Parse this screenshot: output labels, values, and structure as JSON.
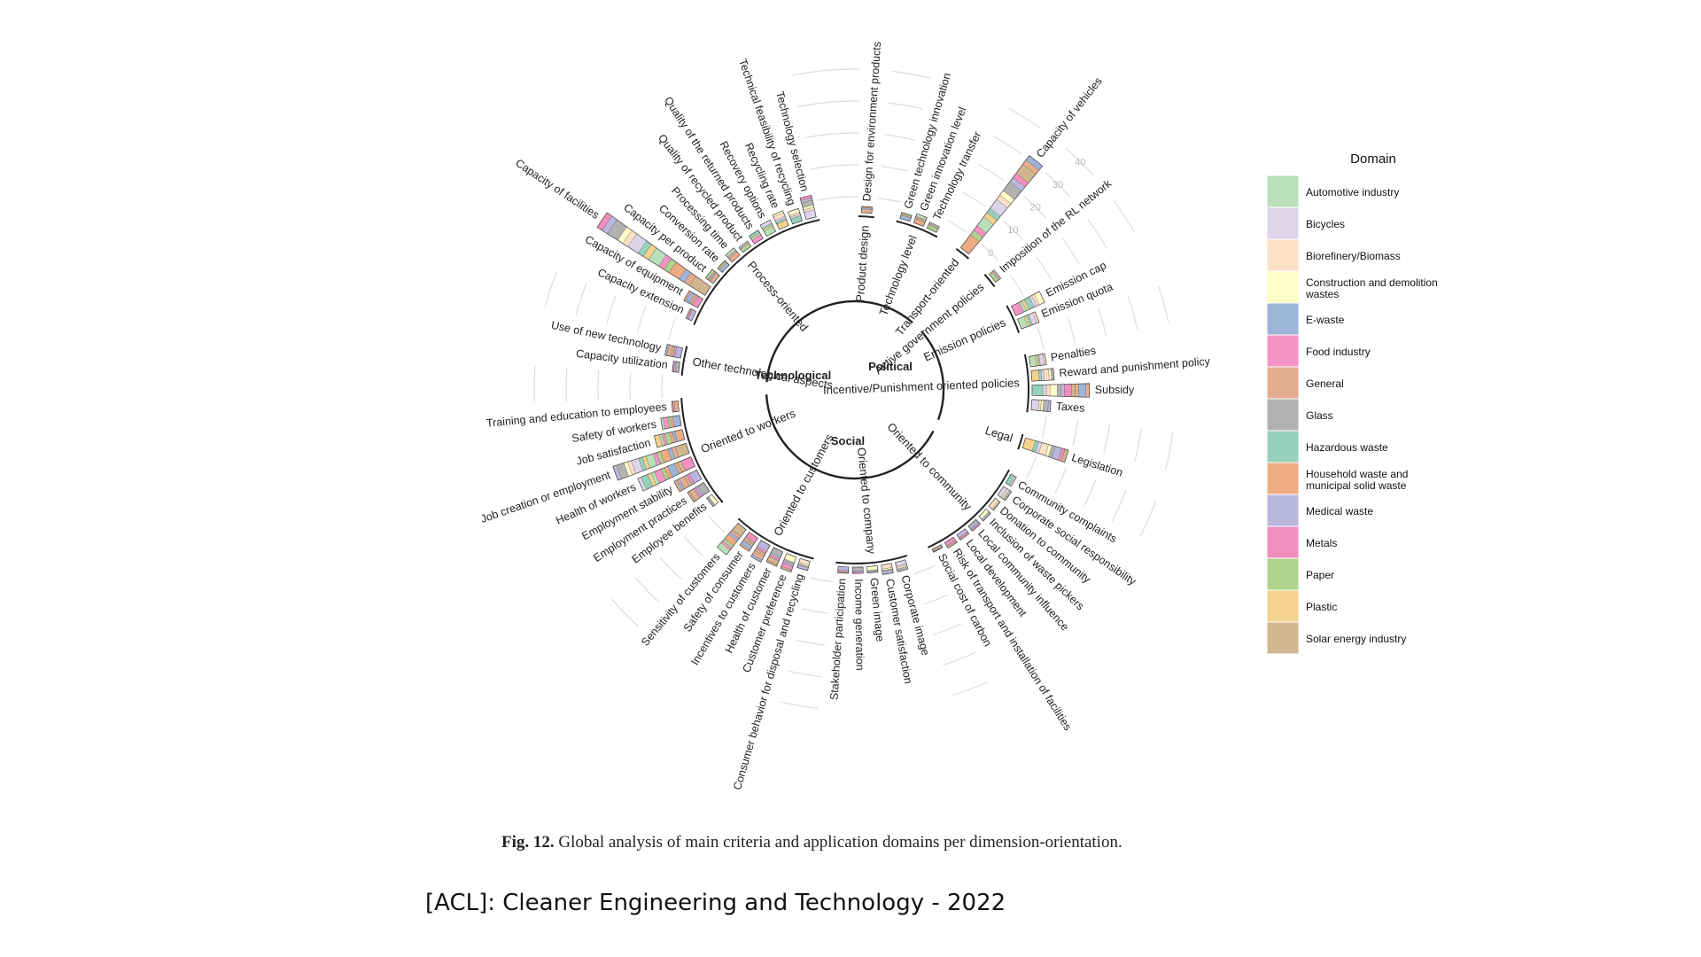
{
  "caption": {
    "label": "Fig. 12.",
    "text": "Global analysis of main criteria and application domains per dimension-orientation."
  },
  "footer": "[ACL]: Cleaner Engineering and Technology - 2022",
  "chart_data": {
    "type": "circular stacked bar",
    "axis_ticks": [
      0,
      10,
      20,
      30,
      40
    ],
    "legend": {
      "title": "Domain",
      "items": [
        {
          "name": "Automotive industry",
          "color": "#b9e0b9"
        },
        {
          "name": "Bicycles",
          "color": "#dcd5ea"
        },
        {
          "name": "Biorefinery/Biomass",
          "color": "#fde0c6"
        },
        {
          "name": "Construction and demolition wastes",
          "color": "#fefcc8"
        },
        {
          "name": "E-waste",
          "color": "#9db5d9"
        },
        {
          "name": "Food industry",
          "color": "#f595c5"
        },
        {
          "name": "General",
          "color": "#e3ac8f"
        },
        {
          "name": "Glass",
          "color": "#b2b2b2"
        },
        {
          "name": "Hazardous waste",
          "color": "#96d1bc"
        },
        {
          "name": "Household waste and municipal solid waste",
          "color": "#efab84"
        },
        {
          "name": "Medical waste",
          "color": "#bab7dd"
        },
        {
          "name": "Metals",
          "color": "#f08fc0"
        },
        {
          "name": "Paper",
          "color": "#b0d48e"
        },
        {
          "name": "Plastic",
          "color": "#f4d28e"
        },
        {
          "name": "Solar energy industry",
          "color": "#d2b690"
        }
      ]
    },
    "dimensions": [
      "Technological",
      "Political",
      "Social"
    ],
    "groups": [
      {
        "name": "Product design",
        "dimension": "Technological",
        "criteria": [
          {
            "name": "Design for environment products",
            "value": 2
          }
        ]
      },
      {
        "name": "Technology level",
        "dimension": "Technological",
        "criteria": [
          {
            "name": "Green technology innovation",
            "value": 2
          },
          {
            "name": "Green innovation level",
            "value": 3
          },
          {
            "name": "Technology transfer",
            "value": 2
          }
        ]
      },
      {
        "name": "Transport-oriented",
        "dimension": "Technological",
        "criteria": [
          {
            "name": "Capacity of vehicles",
            "value": 36
          }
        ]
      },
      {
        "name": "Active government policies",
        "dimension": "Political",
        "criteria": [
          {
            "name": "Imposition of the RL network",
            "value": 2
          }
        ]
      },
      {
        "name": "Emission policies",
        "dimension": "Political",
        "criteria": [
          {
            "name": "Emission cap",
            "value": 10
          },
          {
            "name": "Emission quota",
            "value": 6
          }
        ]
      },
      {
        "name": "Incentive/Punishment oriented policies",
        "dimension": "Political",
        "criteria": [
          {
            "name": "Penalties",
            "value": 5
          },
          {
            "name": "Reward and punishment policy",
            "value": 7
          },
          {
            "name": "Subsidy",
            "value": 18
          },
          {
            "name": "Taxes",
            "value": 6
          }
        ]
      },
      {
        "name": "Legal",
        "dimension": "Political",
        "criteria": [
          {
            "name": "Legislation",
            "value": 14
          }
        ]
      },
      {
        "name": "Oriented to community",
        "dimension": "Social",
        "criteria": [
          {
            "name": "Community complaints",
            "value": 2
          },
          {
            "name": "Corporate social responsibility",
            "value": 3
          },
          {
            "name": "Donation to community",
            "value": 2
          },
          {
            "name": "Inclusion of waste pickers",
            "value": 2
          },
          {
            "name": "Local community influence",
            "value": 2
          },
          {
            "name": "Local development",
            "value": 2
          },
          {
            "name": "Risk of transport and installation of facilities",
            "value": 2
          },
          {
            "name": "Social cost of carbon",
            "value": 1
          }
        ]
      },
      {
        "name": "Oriented to company",
        "dimension": "Social",
        "criteria": [
          {
            "name": "Corporate image",
            "value": 3
          },
          {
            "name": "Customer satisfaction",
            "value": 3
          },
          {
            "name": "Green image",
            "value": 2
          },
          {
            "name": "Income generation",
            "value": 2
          },
          {
            "name": "Stakeholder participation",
            "value": 2
          }
        ]
      },
      {
        "name": "Oriented to customers",
        "dimension": "Social",
        "criteria": [
          {
            "name": "Consumer behavior for disposal and recycling",
            "value": 3
          },
          {
            "name": "Customer preference",
            "value": 5
          },
          {
            "name": "Health of customer",
            "value": 5
          },
          {
            "name": "Incentives to customers",
            "value": 6
          },
          {
            "name": "Safety of consumer",
            "value": 5
          },
          {
            "name": "Sensitivity of customers",
            "value": 10
          }
        ]
      },
      {
        "name": "Oriented to workers",
        "dimension": "Social",
        "criteria": [
          {
            "name": "Employee benefits",
            "value": 2
          },
          {
            "name": "Employment practices",
            "value": 6
          },
          {
            "name": "Employment stability",
            "value": 8
          },
          {
            "name": "Health of workers",
            "value": 18
          },
          {
            "name": "Job creation or employment",
            "value": 24
          },
          {
            "name": "Job satisfaction",
            "value": 9
          },
          {
            "name": "Safety of workers",
            "value": 6
          },
          {
            "name": "Training and education to employees",
            "value": 2
          }
        ]
      },
      {
        "name": "Other technological aspects",
        "dimension": "Technological",
        "criteria": [
          {
            "name": "Capacity utilization",
            "value": 2
          },
          {
            "name": "Use of new technology",
            "value": 5
          }
        ]
      },
      {
        "name": "Process-oriented",
        "dimension": "Technological",
        "criteria": [
          {
            "name": "Capacity extension",
            "value": 2
          },
          {
            "name": "Capacity of equipment",
            "value": 5
          },
          {
            "name": "Capacity of facilities",
            "value": 40
          },
          {
            "name": "Capacity per product",
            "value": 3
          },
          {
            "name": "Conversion rate",
            "value": 2
          },
          {
            "name": "Processing time",
            "value": 3
          },
          {
            "name": "Quality of recycled product",
            "value": 2
          },
          {
            "name": "Quality of the returned products",
            "value": 3
          },
          {
            "name": "Recovery options",
            "value": 4
          },
          {
            "name": "Recycling rate",
            "value": 5
          },
          {
            "name": "Technical feasibility of recycling",
            "value": 4
          },
          {
            "name": "Technology selection",
            "value": 7
          }
        ]
      }
    ]
  }
}
